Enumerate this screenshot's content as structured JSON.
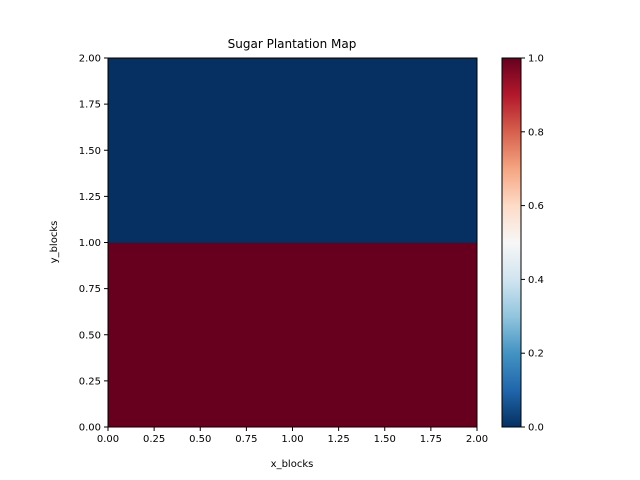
{
  "chart_data": {
    "type": "heatmap",
    "title": "Sugar Plantation Map",
    "xlabel": "x_blocks",
    "ylabel": "y_blocks",
    "xlim": [
      0,
      2
    ],
    "ylim": [
      0,
      2
    ],
    "x_ticks": [
      "0.00",
      "0.25",
      "0.50",
      "0.75",
      "1.00",
      "1.25",
      "1.50",
      "1.75",
      "2.00"
    ],
    "y_ticks": [
      "0.00",
      "0.25",
      "0.50",
      "0.75",
      "1.00",
      "1.25",
      "1.50",
      "1.75",
      "2.00"
    ],
    "cells": [
      {
        "x0": 0,
        "x1": 2,
        "y0": 0,
        "y1": 1,
        "value": 1.0
      },
      {
        "x0": 0,
        "x1": 2,
        "y0": 1,
        "y1": 2,
        "value": 0.0
      }
    ],
    "colorbar": {
      "colormap": "RdBu_r",
      "vmin": 0.0,
      "vmax": 1.0,
      "ticks": [
        "0.0",
        "0.2",
        "0.4",
        "0.6",
        "0.8",
        "1.0"
      ],
      "low_color": "#053061",
      "mid_color": "#f7f7f7",
      "high_color": "#67001f"
    },
    "grid": false
  }
}
